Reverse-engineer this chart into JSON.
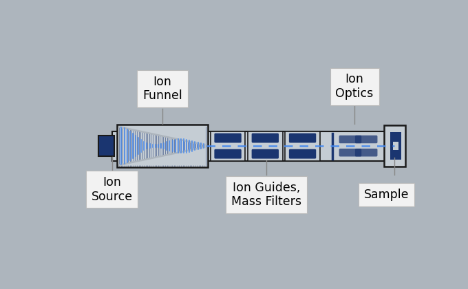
{
  "bg_color": "#adb5bd",
  "dark_blue": "#1a3570",
  "mid_blue": "#1e4db7",
  "bright_blue": "#4488ee",
  "dashed_blue": "#4488ee",
  "box_fill": "#c5cdd4",
  "box_edge": "#1a1a1a",
  "label_fill": "#f2f2f2",
  "label_edge": "#bbbbbb",
  "labels": {
    "ion_source": "Ion\nSource",
    "ion_funnel": "Ion\nFunnel",
    "ion_guides": "Ion Guides,\nMass Filters",
    "ion_optics": "Ion\nOptics",
    "sample": "Sample"
  }
}
